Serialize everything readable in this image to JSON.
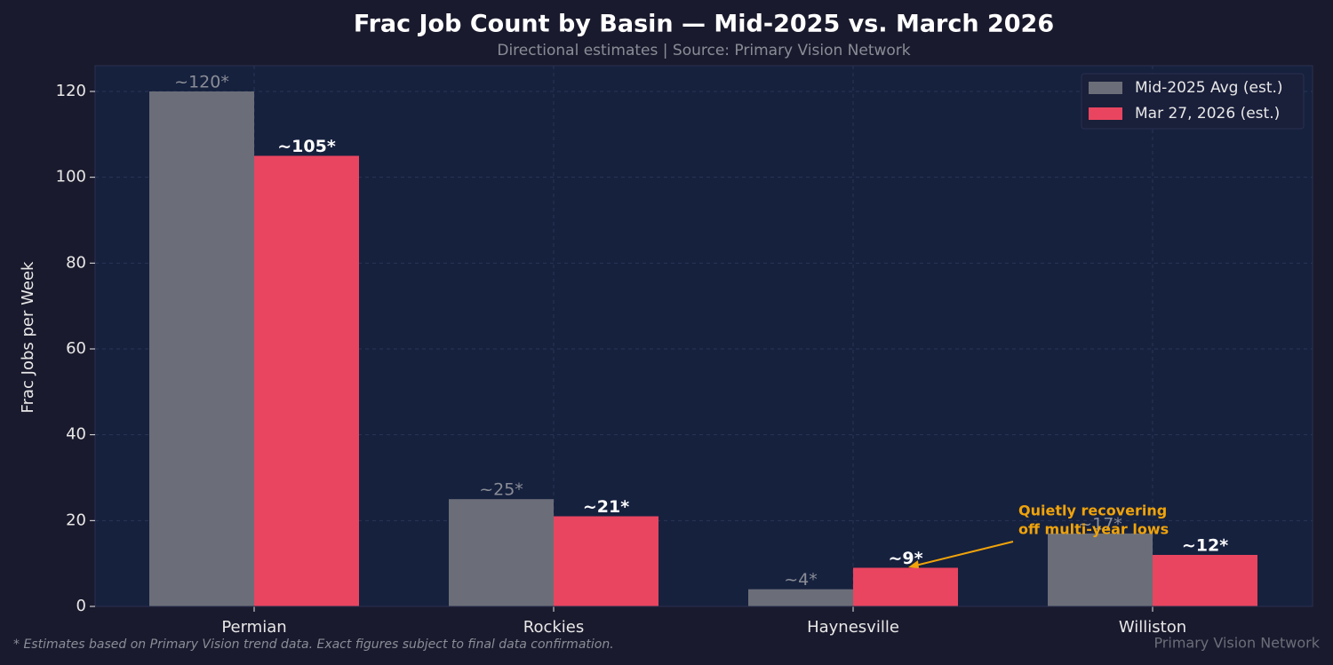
{
  "chart_data": {
    "type": "bar",
    "title": "Frac Job Count by Basin — Mid-2025 vs. March 2026",
    "subtitle": "Directional estimates | Source: Primary Vision Network",
    "y_label": "Frac Jobs per Week",
    "categories": [
      "Permian",
      "Rockies",
      "Haynesville",
      "Williston"
    ],
    "series": [
      {
        "name": "Mid-2025 Avg (est.)",
        "color": "#6b6e78",
        "values": [
          120,
          25,
          4,
          17
        ],
        "value_labels": [
          "~120*",
          "~25*",
          "~4*",
          "~17*"
        ]
      },
      {
        "name": "Mar 27, 2026 (est.)",
        "color": "#e94560",
        "values": [
          105,
          21,
          9,
          12
        ],
        "value_labels": [
          "~105*",
          "~21*",
          "~9*",
          "~12*"
        ]
      }
    ],
    "ylim": [
      0,
      126
    ],
    "yticks": [
      0,
      20,
      40,
      60,
      80,
      100,
      120
    ],
    "grid": true,
    "legend": "upper right",
    "annotation": {
      "text": [
        "Quietly recovering",
        "off multi-year lows"
      ],
      "color": "#f0a30a"
    },
    "footnote": "* Estimates based on Primary Vision trend data. Exact figures subject to final data confirmation.",
    "watermark": "Primary Vision Network"
  }
}
